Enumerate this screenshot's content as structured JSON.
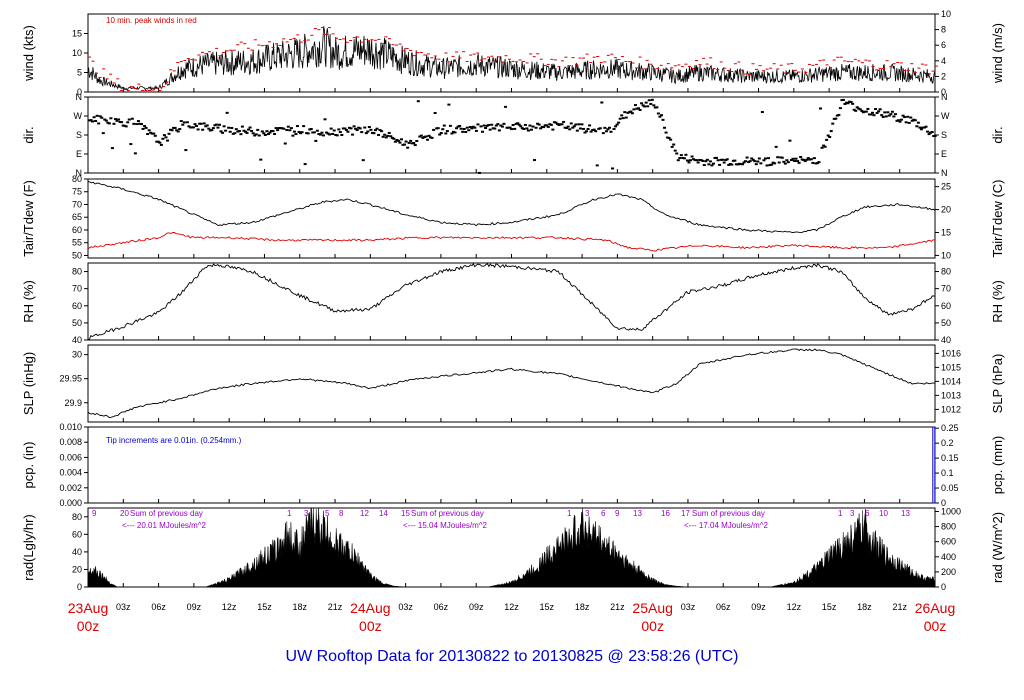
{
  "colors": {
    "red": "#dd0000",
    "blue": "#0000cc",
    "purple": "#9900cc",
    "title": "#0000cc",
    "black": "#000000"
  },
  "footer": {
    "title": "UW Rooftop Data for 20130822  to  20130825 @ 23:58:26  (UTC)"
  },
  "chart_data": [
    {
      "type": "line",
      "name": "wind",
      "ylabel_left": "wind (kts)",
      "ylabel_right": "wind (m/s)",
      "ylim": [
        0,
        20
      ],
      "left_ticks": [
        0,
        5,
        10,
        15
      ],
      "right_ylim": [
        0,
        10
      ],
      "right_ticks": [
        0,
        2,
        4,
        6,
        8,
        10
      ],
      "annotation": "10 min. peak winds in red",
      "series": [
        {
          "name": "wind",
          "color": "#000000",
          "x_hours": [
            0,
            1,
            3,
            4,
            6,
            8,
            10,
            14,
            18,
            20,
            21,
            24,
            27,
            30,
            33,
            36,
            40,
            44,
            48,
            50,
            52,
            56,
            60,
            64,
            68,
            72
          ],
          "values": [
            6,
            3,
            1,
            1,
            1,
            6,
            7,
            8,
            10,
            12,
            10,
            11,
            8,
            6,
            7,
            6,
            5,
            6,
            5,
            4,
            5,
            4,
            4,
            5,
            5,
            4
          ]
        },
        {
          "name": "10 min. peak winds",
          "color": "#dd0000",
          "x_hours": [
            0,
            1,
            3,
            4,
            6,
            8,
            10,
            14,
            18,
            20,
            21,
            24,
            27,
            30,
            33,
            36,
            40,
            44,
            48,
            50,
            52,
            56,
            60,
            64,
            68,
            72
          ],
          "values": [
            8,
            5,
            1,
            1,
            1,
            9,
            10,
            12,
            14,
            16,
            14,
            14,
            11,
            9,
            9,
            9,
            8,
            9,
            7,
            7,
            8,
            6,
            6,
            8,
            7,
            6
          ]
        }
      ]
    },
    {
      "type": "scatter",
      "name": "dir",
      "ylabel_left": "dir.",
      "ylabel_right": "dir.",
      "ylim": [
        0,
        360
      ],
      "left_ticks": [
        "N",
        "E",
        "S",
        "W",
        "N"
      ],
      "right_ticks": [
        "N",
        "E",
        "S",
        "W",
        "N"
      ],
      "x_hours": [
        0,
        2,
        4,
        6,
        8,
        10,
        14,
        18,
        20,
        24,
        27,
        30,
        33,
        36,
        40,
        44,
        46,
        48,
        50,
        52,
        56,
        60,
        62,
        64,
        66,
        68,
        70,
        72
      ],
      "values": [
        260,
        250,
        240,
        150,
        240,
        220,
        200,
        210,
        200,
        210,
        140,
        210,
        215,
        220,
        230,
        200,
        300,
        340,
        80,
        60,
        60,
        60,
        70,
        340,
        300,
        280,
        250,
        180
      ]
    },
    {
      "type": "line",
      "name": "tair",
      "ylabel_left": "Tair/Tdew (F)",
      "ylabel_right": "Tair/Tdew (C)",
      "ylim": [
        49,
        80
      ],
      "left_ticks": [
        50,
        55,
        60,
        65,
        70,
        75,
        80
      ],
      "right_ylim": [
        9.44,
        26.67
      ],
      "right_ticks": [
        10,
        15,
        20,
        25
      ],
      "series": [
        {
          "name": "Tair",
          "color": "#000000",
          "x_hours": [
            0,
            3,
            6,
            9,
            11,
            14,
            17,
            20,
            22,
            24,
            27,
            30,
            33,
            36,
            40,
            43,
            45,
            47,
            49,
            52,
            56,
            60,
            62,
            64,
            66,
            69,
            72
          ],
          "values": [
            79,
            76,
            72,
            66,
            62,
            63,
            67,
            71,
            72,
            70,
            66,
            63,
            62,
            63,
            66,
            72,
            74,
            72,
            66,
            62,
            60,
            59,
            60,
            65,
            69,
            70,
            68
          ]
        },
        {
          "name": "Tdew",
          "color": "#dd0000",
          "x_hours": [
            0,
            3,
            6,
            7,
            9,
            12,
            16,
            20,
            24,
            28,
            32,
            36,
            40,
            44,
            46,
            48,
            50,
            52,
            56,
            60,
            64,
            68,
            72
          ],
          "values": [
            53,
            55,
            57,
            59,
            57,
            57,
            56,
            56,
            56,
            57,
            57,
            57,
            57,
            56,
            53,
            52,
            53,
            54,
            53,
            54,
            53,
            53,
            56
          ]
        }
      ]
    },
    {
      "type": "line",
      "name": "rh",
      "ylabel_left": "RH (%)",
      "ylabel_right": "RH (%)",
      "ylim": [
        40,
        85
      ],
      "left_ticks": [
        40,
        50,
        60,
        70,
        80
      ],
      "right_ticks": [
        40,
        50,
        60,
        70,
        80
      ],
      "series": [
        {
          "name": "RH",
          "color": "#000000",
          "x_hours": [
            0,
            3,
            6,
            8,
            10,
            11,
            14,
            18,
            21,
            24,
            27,
            30,
            33,
            36,
            40,
            43,
            45,
            47,
            49,
            51,
            54,
            57,
            60,
            62,
            64,
            66,
            68,
            70,
            72
          ],
          "values": [
            41,
            48,
            56,
            68,
            83,
            84,
            80,
            66,
            57,
            58,
            72,
            80,
            84,
            83,
            80,
            60,
            47,
            46,
            57,
            68,
            72,
            78,
            82,
            84,
            80,
            65,
            55,
            58,
            66
          ]
        }
      ]
    },
    {
      "type": "line",
      "name": "slp",
      "ylabel_left": "SLP (inHg)",
      "ylabel_right": "SLP (hPa)",
      "ylim": [
        29.86,
        30.02
      ],
      "left_ticks": [
        29.9,
        29.95,
        30.0
      ],
      "right_ylim": [
        1011.1,
        1016.6
      ],
      "right_ticks": [
        1012,
        1013,
        1014,
        1015,
        1016
      ],
      "series": [
        {
          "name": "SLP",
          "color": "#000000",
          "x_hours": [
            0,
            2,
            4,
            8,
            11,
            14,
            18,
            22,
            24,
            28,
            32,
            36,
            40,
            44,
            46,
            48,
            50,
            52,
            56,
            60,
            62,
            64,
            66,
            68,
            70,
            72
          ],
          "values": [
            29.88,
            29.87,
            29.89,
            29.91,
            29.93,
            29.94,
            29.95,
            29.94,
            29.93,
            29.95,
            29.96,
            29.97,
            29.96,
            29.94,
            29.93,
            29.92,
            29.94,
            29.98,
            30.0,
            30.01,
            30.01,
            30.0,
            29.98,
            29.96,
            29.94,
            29.94
          ]
        }
      ]
    },
    {
      "type": "bar",
      "name": "pcp",
      "ylabel_left": "pcp. (in)",
      "ylabel_right": "pcp. (mm)",
      "ylim": [
        0,
        0.01
      ],
      "left_ticks": [
        "0.000",
        "0.002",
        "0.004",
        "0.006",
        "0.008",
        "0.010"
      ],
      "right_ylim": [
        0,
        0.254
      ],
      "right_ticks": [
        0,
        0.05,
        0.1,
        0.15,
        0.2,
        0.25
      ],
      "annotation": "Tip increments are 0.01in. (0.254mm.)",
      "x_hours": [
        71.9
      ],
      "values": [
        0.01
      ]
    },
    {
      "type": "area",
      "name": "rad",
      "ylabel_left": "rad(Lgly/hr)",
      "ylabel_right": "rad (W/m^2)",
      "ylim": [
        0,
        90
      ],
      "left_ticks": [
        0,
        20,
        40,
        60,
        80
      ],
      "right_ylim": [
        0,
        1046
      ],
      "right_ticks": [
        0,
        200,
        400,
        600,
        800,
        1000
      ],
      "x_hours": [
        0,
        0.5,
        1,
        2,
        2.5,
        3,
        10,
        12,
        14,
        16,
        17,
        18,
        19,
        20,
        21,
        22,
        23,
        24,
        25,
        26,
        27,
        34,
        36,
        38,
        40,
        41,
        42,
        43,
        44,
        45,
        46,
        47,
        48,
        49,
        50,
        51,
        58,
        60,
        62,
        64,
        65,
        66,
        67,
        68,
        69,
        70,
        71,
        72
      ],
      "values": [
        20,
        24,
        18,
        4,
        0,
        0,
        0,
        10,
        30,
        50,
        70,
        55,
        85,
        78,
        60,
        50,
        35,
        15,
        5,
        1,
        0,
        0,
        6,
        25,
        55,
        65,
        85,
        70,
        55,
        45,
        30,
        20,
        10,
        3,
        1,
        0,
        0,
        6,
        25,
        55,
        65,
        80,
        55,
        40,
        30,
        20,
        12,
        10
      ],
      "hour_labels_left": [
        "9",
        "20",
        "1",
        "3",
        "5",
        "8",
        "12",
        "14",
        "15",
        "1",
        "3",
        "6",
        "9",
        "13",
        "16",
        "17",
        "1",
        "3",
        "6",
        "10",
        "13"
      ],
      "summaries": [
        {
          "header": "Sum of previous day",
          "value": "<--- 20.01 MJoules/m^2"
        },
        {
          "header": "Sum of previous day",
          "value": "<--- 15.04 MJoules/m^2"
        },
        {
          "header": "Sum of previous day",
          "value": "<--- 17.04 MJoules/m^2"
        }
      ]
    }
  ],
  "xaxis": {
    "hour_ticks": [
      "03z",
      "06z",
      "09z",
      "12z",
      "15z",
      "18z",
      "21z",
      "03z",
      "06z",
      "09z",
      "12z",
      "15z",
      "18z",
      "21z",
      "03z",
      "06z",
      "09z",
      "12z",
      "15z",
      "18z",
      "21z"
    ],
    "date_labels": [
      {
        "date": "23Aug",
        "time": "00z"
      },
      {
        "date": "24Aug",
        "time": "00z"
      },
      {
        "date": "25Aug",
        "time": "00z"
      },
      {
        "date": "26Aug",
        "time": "00z"
      }
    ]
  }
}
